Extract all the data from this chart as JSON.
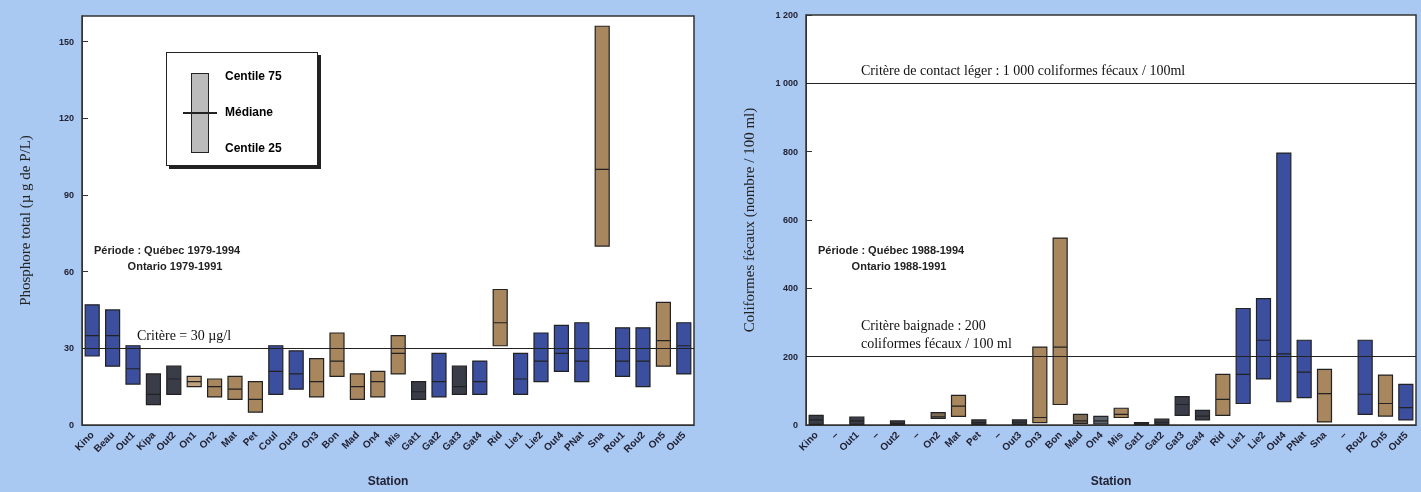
{
  "chart_data": [
    {
      "type": "box",
      "xlabel": "Station",
      "ylabel": "Phosphore total (µ g de P/L)",
      "categories": [
        "Kino",
        "Beau",
        "Out1",
        "Kipa",
        "Out2",
        "On1",
        "On2",
        "Mat",
        "Pet",
        "Coul",
        "Out3",
        "On3",
        "Bon",
        "Mad",
        "On4",
        "Mis",
        "Gat1",
        "Gat2",
        "Gat3",
        "Gat4",
        "Rid",
        "Lie1",
        "Lie2",
        "Out4",
        "PNat",
        "Sna",
        "Rou1",
        "Rou2",
        "On5",
        "Out5"
      ],
      "boxes": [
        {
          "low": 27,
          "q1": 27,
          "median": 35,
          "q3": 47,
          "high": 47
        },
        {
          "low": 23,
          "q1": 23,
          "median": 35,
          "q3": 45,
          "high": 45
        },
        {
          "low": 16,
          "q1": 16,
          "median": 22,
          "q3": 31,
          "high": 31
        },
        {
          "low": 8,
          "q1": 8,
          "median": 12,
          "q3": 20,
          "high": 20
        },
        {
          "low": 12,
          "q1": 12,
          "median": 18,
          "q3": 23,
          "high": 23
        },
        {
          "low": 15,
          "q1": 15,
          "median": 17,
          "q3": 19,
          "high": 19
        },
        {
          "low": 11,
          "q1": 11,
          "median": 15,
          "q3": 18,
          "high": 18
        },
        {
          "low": 10,
          "q1": 10,
          "median": 14,
          "q3": 19,
          "high": 19
        },
        {
          "low": 5,
          "q1": 5,
          "median": 10,
          "q3": 17,
          "high": 17
        },
        {
          "low": 12,
          "q1": 12,
          "median": 21,
          "q3": 31,
          "high": 31
        },
        {
          "low": 14,
          "q1": 14,
          "median": 20,
          "q3": 29,
          "high": 29
        },
        {
          "low": 11,
          "q1": 11,
          "median": 17,
          "q3": 26,
          "high": 26
        },
        {
          "low": 19,
          "q1": 19,
          "median": 25,
          "q3": 36,
          "high": 36
        },
        {
          "low": 10,
          "q1": 10,
          "median": 15,
          "q3": 20,
          "high": 20
        },
        {
          "low": 11,
          "q1": 11,
          "median": 17,
          "q3": 21,
          "high": 21
        },
        {
          "low": 20,
          "q1": 20,
          "median": 28,
          "q3": 35,
          "high": 35
        },
        {
          "low": 10,
          "q1": 10,
          "median": 13,
          "q3": 17,
          "high": 17
        },
        {
          "low": 11,
          "q1": 11,
          "median": 17,
          "q3": 28,
          "high": 28
        },
        {
          "low": 12,
          "q1": 12,
          "median": 15,
          "q3": 23,
          "high": 23
        },
        {
          "low": 12,
          "q1": 12,
          "median": 17,
          "q3": 25,
          "high": 25
        },
        {
          "low": 31,
          "q1": 31,
          "median": 40,
          "q3": 53,
          "high": 53
        },
        {
          "low": 12,
          "q1": 12,
          "median": 18,
          "q3": 28,
          "high": 28
        },
        {
          "low": 17,
          "q1": 17,
          "median": 25,
          "q3": 36,
          "high": 36
        },
        {
          "low": 21,
          "q1": 21,
          "median": 28,
          "q3": 39,
          "high": 39
        },
        {
          "low": 17,
          "q1": 17,
          "median": 25,
          "q3": 40,
          "high": 40
        },
        {
          "low": 70,
          "q1": 70,
          "median": 100,
          "q3": 156,
          "high": 156
        },
        {
          "low": 19,
          "q1": 19,
          "median": 25,
          "q3": 38,
          "high": 38
        },
        {
          "low": 15,
          "q1": 15,
          "median": 25,
          "q3": 38,
          "high": 38
        },
        {
          "low": 23,
          "q1": 23,
          "median": 33,
          "q3": 48,
          "high": 48
        },
        {
          "low": 20,
          "q1": 20,
          "median": 31,
          "q3": 40,
          "high": 40
        }
      ],
      "colors": [
        "#3b4f9e",
        "#3b4f9e",
        "#3b4f9e",
        "#3a3d48",
        "#3a3d48",
        "#c0a27c",
        "#a8865e",
        "#a8865e",
        "#a8865e",
        "#3b4f9e",
        "#3b4f9e",
        "#a8865e",
        "#a8865e",
        "#a8865e",
        "#a8865e",
        "#a8865e",
        "#3a3d48",
        "#3b4f9e",
        "#3a3d48",
        "#3b4f9e",
        "#a8865e",
        "#3b4f9e",
        "#3b4f9e",
        "#3b4f9e",
        "#3b4f9e",
        "#a8865e",
        "#3b4f9e",
        "#3b4f9e",
        "#a8865e",
        "#3b4f9e"
      ],
      "ylim": [
        0,
        160
      ],
      "yticks": [
        0,
        30,
        60,
        90,
        120,
        150
      ],
      "grid": false,
      "ref_lines": [
        {
          "axis": "y",
          "value": 30,
          "label": "Critère = 30 µg/l"
        }
      ],
      "annotations": [
        "Centile 75",
        "Médiane",
        "Centile 25",
        "Période : Québec 1979-1994\nOntario 1979-1991"
      ]
    },
    {
      "type": "box",
      "xlabel": "Station",
      "ylabel": "Coliformes fécaux (nombre / 100 ml)",
      "categories": [
        "Kino",
        "–",
        "Out1",
        "–",
        "Out2",
        "–",
        "On2",
        "Mat",
        "Pet",
        "–",
        "Out3",
        "On3",
        "Bon",
        "Mad",
        "On4",
        "Mis",
        "Gat1",
        "Gat2",
        "Gat3",
        "Gat4",
        "Rid",
        "Lie1",
        "Lie2",
        "Out4",
        "PNat",
        "Sna",
        "–",
        "Rou2",
        "On5",
        "Out5"
      ],
      "boxes": [
        {
          "low": 2,
          "q1": 2,
          "median": 15,
          "q3": 28,
          "high": 28
        },
        null,
        {
          "low": 2,
          "q1": 2,
          "median": 12,
          "q3": 23,
          "high": 23
        },
        null,
        {
          "low": 1,
          "q1": 1,
          "median": 5,
          "q3": 12,
          "high": 12
        },
        null,
        {
          "low": 19,
          "q1": 19,
          "median": 24,
          "q3": 36,
          "high": 36
        },
        {
          "low": 25,
          "q1": 25,
          "median": 55,
          "q3": 87,
          "high": 87
        },
        {
          "low": 2,
          "q1": 2,
          "median": 7,
          "q3": 15,
          "high": 15
        },
        null,
        {
          "low": 2,
          "q1": 2,
          "median": 8,
          "q3": 15,
          "high": 15
        },
        {
          "low": 7,
          "q1": 7,
          "median": 22,
          "q3": 228,
          "high": 228
        },
        {
          "low": 60,
          "q1": 60,
          "median": 228,
          "q3": 547,
          "high": 547
        },
        {
          "low": 5,
          "q1": 5,
          "median": 12,
          "q3": 31,
          "high": 31
        },
        {
          "low": 3,
          "q1": 3,
          "median": 12,
          "q3": 25,
          "high": 25
        },
        {
          "low": 22,
          "q1": 22,
          "median": 31,
          "q3": 49,
          "high": 49
        },
        {
          "low": 1,
          "q1": 1,
          "median": 3,
          "q3": 7,
          "high": 7
        },
        {
          "low": 2,
          "q1": 2,
          "median": 8,
          "q3": 17,
          "high": 17
        },
        {
          "low": 28,
          "q1": 28,
          "median": 60,
          "q3": 83,
          "high": 83
        },
        {
          "low": 15,
          "q1": 15,
          "median": 26,
          "q3": 43,
          "high": 43
        },
        {
          "low": 28,
          "q1": 28,
          "median": 75,
          "q3": 148,
          "high": 148
        },
        {
          "low": 63,
          "q1": 63,
          "median": 148,
          "q3": 341,
          "high": 341
        },
        {
          "low": 135,
          "q1": 135,
          "median": 248,
          "q3": 370,
          "high": 370
        },
        {
          "low": 68,
          "q1": 68,
          "median": 208,
          "q3": 796,
          "high": 796
        },
        {
          "low": 80,
          "q1": 80,
          "median": 155,
          "q3": 248,
          "high": 248
        },
        {
          "low": 9,
          "q1": 9,
          "median": 92,
          "q3": 163,
          "high": 163
        },
        null,
        {
          "low": 31,
          "q1": 31,
          "median": 90,
          "q3": 248,
          "high": 248
        },
        {
          "low": 26,
          "q1": 26,
          "median": 63,
          "q3": 146,
          "high": 146
        },
        {
          "low": 15,
          "q1": 15,
          "median": 51,
          "q3": 119,
          "high": 119
        }
      ],
      "colors": [
        "#3a3d48",
        null,
        "#3a3d48",
        null,
        "#3a3d48",
        null,
        "#7d6a55",
        "#a8865e",
        "#3a3d48",
        null,
        "#3a3d48",
        "#a8865e",
        "#a8865e",
        "#7d6a55",
        "#5d6470",
        "#a8865e",
        "#3a3d48",
        "#3a3d48",
        "#3a3d48",
        "#3a3d48",
        "#a8865e",
        "#3b4f9e",
        "#3b4f9e",
        "#3b4f9e",
        "#3b4f9e",
        "#a8865e",
        null,
        "#3b4f9e",
        "#a8865e",
        "#3b4f9e"
      ],
      "ylim": [
        0,
        1200
      ],
      "yticks": [
        0,
        200,
        400,
        600,
        800,
        {
          "value": 1000,
          "label": "1 000"
        },
        {
          "value": 1200,
          "label": "1 200"
        }
      ],
      "grid": false,
      "ref_lines": [
        {
          "axis": "y",
          "value": 1000,
          "label": "Critère de contact léger : 1 000 coliformes fécaux / 100ml"
        },
        {
          "axis": "y",
          "value": 200,
          "label": "Critère baignade : 200\ncoliformes fécaux / 100 ml"
        }
      ],
      "annotations": [
        "Période : Québec 1988-1994\nOntario 1988-1991"
      ]
    }
  ]
}
